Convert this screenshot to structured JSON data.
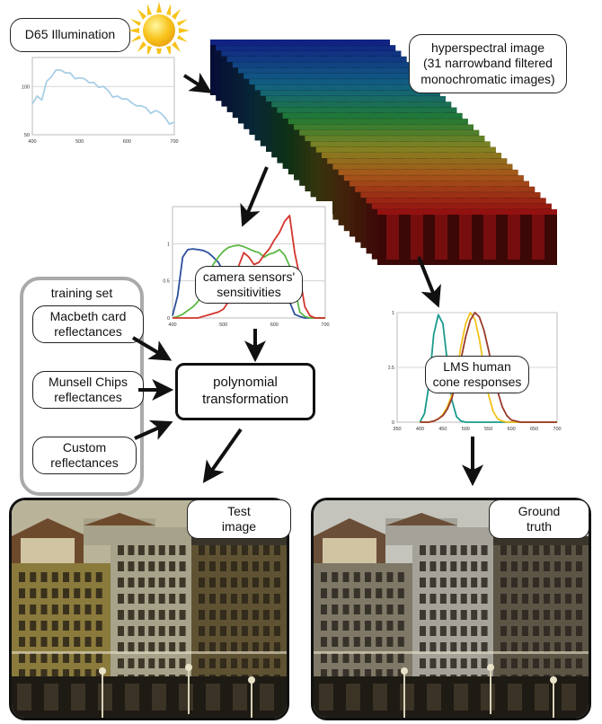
{
  "labels": {
    "d65": "D65 Illumination",
    "hyperspectral_line1": "hyperspectral image",
    "hyperspectral_line2": "(31 narrowband filtered",
    "hyperspectral_line3": "monochromatic images)",
    "camera_line1": "camera sensors'",
    "camera_line2": "sensitivities",
    "lms_line1": "LMS human",
    "lms_line2": "cone responses",
    "training_set": "training set",
    "macbeth_line1": "Macbeth card",
    "macbeth_line2": "reflectances",
    "munsell_line1": "Munsell Chips",
    "munsell_line2": "reflectances",
    "custom_line1": "Custom",
    "custom_line2": "reflectances",
    "poly_line1": "polynomial",
    "poly_line2": "transformation",
    "test_line1": "Test",
    "test_line2": "image",
    "ground_line1": "Ground",
    "ground_line2": "truth"
  },
  "colors": {
    "d65_line": "#a8cfe6",
    "red": "#d4342c",
    "green": "#5cb845",
    "blue": "#2c4f9c",
    "teal": "#1a9a8c",
    "yellow": "#f2c21a",
    "brown": "#9a3b2c",
    "sun": "#f7c31b"
  },
  "chart_data": [
    {
      "type": "line",
      "x": [
        400,
        410,
        420,
        430,
        440,
        450,
        460,
        470,
        480,
        490,
        500,
        510,
        520,
        530,
        540,
        550,
        560,
        570,
        580,
        590,
        600,
        610,
        620,
        630,
        640,
        650,
        660,
        670,
        680,
        690,
        700
      ],
      "series": [
        {
          "values": [
            82,
            90,
            86,
            105,
            110,
            117,
            117,
            114,
            114,
            108,
            109,
            108,
            104,
            104,
            99,
            100,
            96,
            89,
            90,
            87,
            87,
            83,
            80,
            80,
            78,
            72,
            75,
            73,
            68,
            61,
            63
          ]
        }
      ],
      "ylim": [
        50,
        130
      ],
      "xticks": [
        "400",
        "500",
        "600",
        "700"
      ],
      "yticks": [
        "100",
        "50"
      ]
    },
    {
      "type": "line",
      "x": [
        400,
        410,
        420,
        430,
        440,
        450,
        460,
        470,
        480,
        490,
        500,
        510,
        520,
        530,
        540,
        550,
        560,
        570,
        580,
        590,
        600,
        610,
        620,
        630,
        640,
        650,
        660,
        670,
        680,
        690,
        700
      ],
      "series": [
        {
          "values": [
            0.03,
            0.3,
            0.82,
            0.92,
            0.93,
            0.92,
            0.91,
            0.88,
            0.82,
            0.75,
            0.62,
            0.52,
            0.45,
            0.42,
            0.4,
            0.38,
            0.36,
            0.35,
            0.35,
            0.36,
            0.36,
            0.37,
            0.36,
            0.22,
            0.05,
            0.02,
            0,
            0,
            0,
            0,
            0
          ]
        },
        {
          "values": [
            0,
            0.02,
            0.05,
            0.1,
            0.15,
            0.22,
            0.35,
            0.55,
            0.72,
            0.82,
            0.9,
            0.95,
            0.97,
            0.98,
            0.96,
            0.93,
            0.9,
            0.88,
            0.82,
            0.86,
            0.88,
            0.92,
            0.85,
            0.7,
            0.4,
            0.08,
            0.02,
            0,
            0,
            0,
            0
          ]
        },
        {
          "values": [
            0,
            0,
            0,
            0,
            0,
            0,
            0.02,
            0.04,
            0.06,
            0.08,
            0.12,
            0.22,
            0.4,
            0.7,
            0.88,
            0.82,
            0.72,
            0.75,
            0.85,
            0.93,
            1.05,
            1.15,
            1.3,
            1.38,
            0.88,
            0.55,
            0.15,
            0.03,
            0,
            0,
            0
          ]
        }
      ],
      "ylim": [
        0,
        1.5
      ],
      "xticks": [
        "400",
        "500",
        "600",
        "700"
      ],
      "yticks": [
        "1",
        "0.5",
        "0"
      ]
    },
    {
      "type": "line",
      "x": [
        400,
        410,
        420,
        430,
        440,
        450,
        460,
        470,
        480,
        490,
        500,
        510,
        520,
        530,
        540,
        550,
        560,
        570,
        580,
        590,
        600,
        610,
        620,
        630,
        640,
        650,
        660,
        670,
        680,
        690,
        700
      ],
      "series": [
        {
          "values": [
            0,
            0.08,
            0.35,
            0.8,
            0.98,
            0.9,
            0.55,
            0.2,
            0.05,
            0.01,
            0,
            0,
            0,
            0,
            0,
            0,
            0,
            0,
            0,
            0,
            0,
            0,
            0,
            0,
            0,
            0,
            0,
            0,
            0,
            0,
            0
          ]
        },
        {
          "values": [
            0,
            0,
            0,
            0.01,
            0.03,
            0.07,
            0.14,
            0.25,
            0.45,
            0.7,
            0.9,
            1.0,
            0.94,
            0.76,
            0.5,
            0.25,
            0.1,
            0.03,
            0.01,
            0,
            0,
            0,
            0,
            0,
            0,
            0,
            0,
            0,
            0,
            0,
            0
          ]
        },
        {
          "values": [
            0,
            0,
            0,
            0.01,
            0.03,
            0.06,
            0.12,
            0.22,
            0.38,
            0.58,
            0.78,
            0.93,
            1.0,
            0.96,
            0.84,
            0.66,
            0.46,
            0.28,
            0.14,
            0.06,
            0.02,
            0.01,
            0,
            0,
            0,
            0,
            0,
            0,
            0,
            0,
            0
          ]
        }
      ],
      "ylim": [
        0,
        1
      ],
      "xticks": [
        "350",
        "400",
        "450",
        "500",
        "550",
        "600",
        "650",
        "700"
      ],
      "yticks": [
        "1",
        "0.5",
        "0"
      ]
    }
  ]
}
